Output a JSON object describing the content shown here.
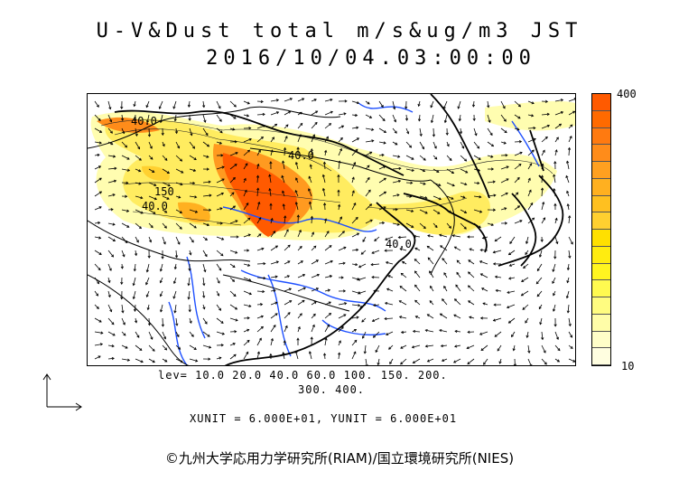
{
  "title": {
    "line1": "U-V&Dust total m/s&ug/m3 JST",
    "line2": "2016/10/04.03:00:00"
  },
  "colorbar": {
    "max_label": "400",
    "min_label": "10",
    "colors": [
      "#ff5a00",
      "#ff6a00",
      "#ff7a10",
      "#ff8c1a",
      "#ffa020",
      "#ffb020",
      "#ffc020",
      "#ffd030",
      "#ffe000",
      "#ffec10",
      "#fff520",
      "#fffa50",
      "#fffc80",
      "#fffda8",
      "#fffec8",
      "#fffee0"
    ]
  },
  "contour_labels": [
    "40.0",
    "40.0",
    "150",
    "40.0",
    "40.0"
  ],
  "levels": {
    "line1": "lev= 10.0 20.0 40.0 60.0 100. 150. 200.",
    "line2": "300. 400."
  },
  "units": "XUNIT = 6.000E+01, YUNIT = 6.000E+01",
  "credit": "©九州大学応用力学研究所(RIAM)/国立環境研究所(NIES)"
}
